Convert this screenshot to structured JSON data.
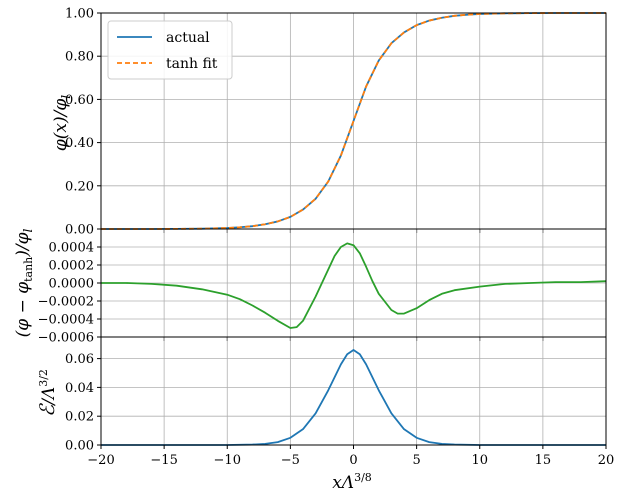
{
  "chart_data": [
    {
      "type": "line",
      "panel": "top",
      "ylabel": "φ(x)/φ_l",
      "ylim": [
        0.0,
        1.0
      ],
      "yticks": [
        "0.00",
        "0.20",
        "0.40",
        "0.60",
        "0.80",
        "1.00"
      ],
      "xlim": [
        -20,
        20
      ],
      "grid": true,
      "legend_placement": "top-left",
      "series": [
        {
          "name": "actual",
          "color": "#1f77b4",
          "style": "solid",
          "x": [
            -20,
            -18,
            -16,
            -14,
            -12,
            -10,
            -9,
            -8,
            -7,
            -6,
            -5,
            -4,
            -3,
            -2,
            -1,
            0,
            1,
            2,
            3,
            4,
            5,
            6,
            7,
            8,
            9,
            10,
            12,
            14,
            16,
            18,
            20
          ],
          "values": [
            0.0,
            0.0,
            0.0,
            0.0005,
            0.0015,
            0.0045,
            0.008,
            0.013,
            0.022,
            0.035,
            0.056,
            0.09,
            0.14,
            0.22,
            0.34,
            0.5,
            0.66,
            0.78,
            0.86,
            0.91,
            0.944,
            0.965,
            0.978,
            0.987,
            0.992,
            0.9955,
            0.9985,
            0.9995,
            1.0,
            1.0,
            1.0
          ]
        },
        {
          "name": "tanh fit",
          "color": "#ff7f0e",
          "style": "dashed",
          "x": [
            -20,
            -18,
            -16,
            -14,
            -12,
            -10,
            -9,
            -8,
            -7,
            -6,
            -5,
            -4,
            -3,
            -2,
            -1,
            0,
            1,
            2,
            3,
            4,
            5,
            6,
            7,
            8,
            9,
            10,
            12,
            14,
            16,
            18,
            20
          ],
          "values": [
            0.0,
            0.0,
            0.0,
            0.0005,
            0.0015,
            0.0045,
            0.008,
            0.013,
            0.022,
            0.035,
            0.056,
            0.09,
            0.14,
            0.22,
            0.34,
            0.5,
            0.66,
            0.78,
            0.86,
            0.91,
            0.944,
            0.965,
            0.978,
            0.987,
            0.992,
            0.9955,
            0.9985,
            0.9995,
            1.0,
            1.0,
            1.0
          ]
        }
      ]
    },
    {
      "type": "line",
      "panel": "middle",
      "ylabel": "(φ − φ_tanh)/φ_l",
      "ylim": [
        -0.0006,
        0.0006
      ],
      "yticks": [
        "−0.0006",
        "−0.0004",
        "−0.0002",
        "0.0000",
        "0.0002",
        "0.0004"
      ],
      "xlim": [
        -20,
        20
      ],
      "grid": true,
      "series": [
        {
          "color": "#2ca02c",
          "style": "solid",
          "x": [
            -20,
            -18,
            -16,
            -14,
            -12,
            -10,
            -9,
            -8,
            -7,
            -6,
            -5,
            -4.5,
            -4,
            -3,
            -2,
            -1.5,
            -1,
            -0.5,
            0,
            0.5,
            1,
            1.5,
            2,
            3,
            3.5,
            4,
            5,
            6,
            7,
            8,
            10,
            12,
            14,
            16,
            18,
            20
          ],
          "values": [
            0.0,
            0.0,
            -1e-05,
            -3e-05,
            -7e-05,
            -0.00013,
            -0.00018,
            -0.00025,
            -0.00033,
            -0.00042,
            -0.0005,
            -0.00049,
            -0.00042,
            -0.00015,
            0.00015,
            0.0003,
            0.0004,
            0.00044,
            0.00042,
            0.00033,
            0.00018,
            2e-05,
            -0.00012,
            -0.0003,
            -0.00034,
            -0.00034,
            -0.00028,
            -0.00019,
            -0.00012,
            -8e-05,
            -4e-05,
            -1e-05,
            0.0,
            1e-05,
            1e-05,
            2e-05
          ]
        }
      ]
    },
    {
      "type": "line",
      "panel": "bottom",
      "ylabel": "ℰ/Λ^{3/2}",
      "ylim": [
        0.0,
        0.075
      ],
      "yticks": [
        "0.00",
        "0.02",
        "0.04",
        "0.06"
      ],
      "xlim": [
        -20,
        20
      ],
      "xticks": [
        "−20",
        "−15",
        "−10",
        "−5",
        "0",
        "5",
        "10",
        "15",
        "20"
      ],
      "xlabel": "xΛ^{3/8}",
      "grid": true,
      "series": [
        {
          "color": "#1f77b4",
          "style": "solid",
          "x": [
            -20,
            -12,
            -10,
            -8,
            -7,
            -6,
            -5,
            -4,
            -3,
            -2,
            -1,
            -0.5,
            0,
            0.5,
            1,
            2,
            3,
            4,
            5,
            6,
            7,
            8,
            10,
            12,
            20
          ],
          "values": [
            0.0,
            0.0,
            0.0,
            0.0003,
            0.0008,
            0.002,
            0.005,
            0.011,
            0.022,
            0.038,
            0.056,
            0.063,
            0.066,
            0.063,
            0.056,
            0.038,
            0.022,
            0.011,
            0.005,
            0.002,
            0.0008,
            0.0003,
            0.0,
            0.0,
            0.0
          ]
        }
      ]
    }
  ]
}
